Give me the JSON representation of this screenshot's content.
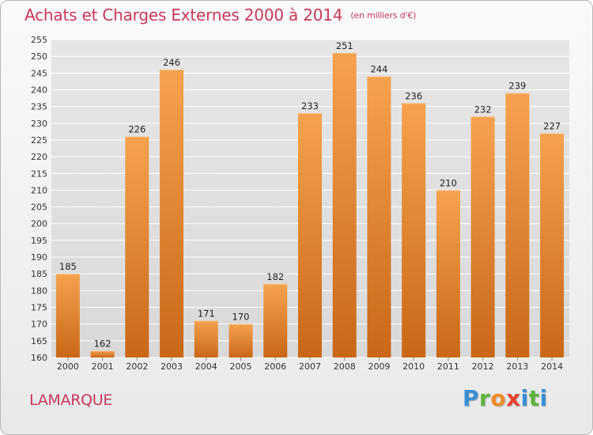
{
  "header": {
    "title": "Achats et Charges Externes 2000 à 2014",
    "unit": "(en milliers d'€)"
  },
  "footer": {
    "town": "LAMARQUE",
    "brand_letters": [
      "P",
      "r",
      "o",
      "x",
      "i",
      "t",
      "i"
    ]
  },
  "colors": {
    "title": "#c8385a",
    "bar_top": "#f5a24e",
    "bar_bottom": "#c96717",
    "grid": "#ffffff",
    "brand": [
      "#3a8fd4",
      "#5bb53c",
      "#f08a24",
      "#e8402a",
      "#3a8fd4",
      "#5bb53c",
      "#3a8fd4"
    ]
  },
  "chart_data": {
    "type": "bar",
    "title": "Achats et Charges Externes 2000 à 2014",
    "subtitle": "(en milliers d'€)",
    "xlabel": "",
    "ylabel": "",
    "categories": [
      "2000",
      "2001",
      "2002",
      "2003",
      "2004",
      "2005",
      "2006",
      "2007",
      "2008",
      "2009",
      "2010",
      "2011",
      "2012",
      "2013",
      "2014"
    ],
    "values": [
      185,
      162,
      226,
      246,
      171,
      170,
      182,
      233,
      251,
      244,
      236,
      210,
      232,
      239,
      227
    ],
    "ylim": [
      160,
      255
    ],
    "ytick_step": 5,
    "grid": true,
    "legend": "none"
  }
}
